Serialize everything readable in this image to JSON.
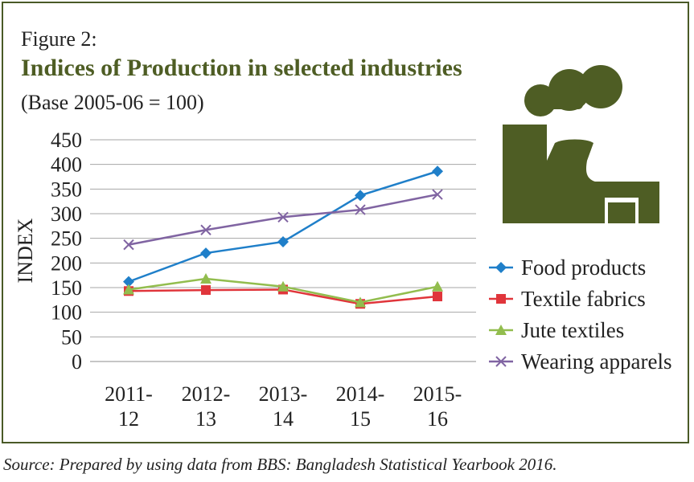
{
  "figure_label": "Figure 2:",
  "colors": {
    "frame": "#4a5a27",
    "title": "#4e5d24",
    "icon": "#4e5d24",
    "grid": "#a6a6a6"
  },
  "icon": "factory-icon",
  "source": "Source: Prepared by using data from BBS: Bangladesh Statistical Yearbook 2016.",
  "chart_data": {
    "type": "line",
    "title": "Indices of Production in selected industries",
    "subtitle": "(Base 2005-06 = 100)",
    "xlabel": "",
    "ylabel": "INDEX",
    "ylim": [
      0,
      450
    ],
    "yticks": [
      0,
      50,
      100,
      150,
      200,
      250,
      300,
      350,
      400,
      450
    ],
    "grid": true,
    "legend_position": "right",
    "categories": [
      [
        "2011-",
        "12"
      ],
      [
        "2012-",
        "13"
      ],
      [
        "2013-",
        "14"
      ],
      [
        "2014-",
        "15"
      ],
      [
        "2015-",
        "16"
      ]
    ],
    "series": [
      {
        "name": "Food products",
        "marker": "diamond",
        "color": "#1f7fc9",
        "values": [
          162,
          220,
          243,
          337,
          386
        ]
      },
      {
        "name": "Textile fabrics",
        "marker": "square",
        "color": "#e0353b",
        "values": [
          143,
          145,
          146,
          117,
          132
        ]
      },
      {
        "name": "Jute textiles",
        "marker": "triangle",
        "color": "#92bd4e",
        "values": [
          146,
          168,
          152,
          120,
          152
        ]
      },
      {
        "name": "Wearing apparels",
        "marker": "x",
        "color": "#8064a2",
        "values": [
          237,
          267,
          293,
          308,
          339
        ]
      }
    ]
  }
}
